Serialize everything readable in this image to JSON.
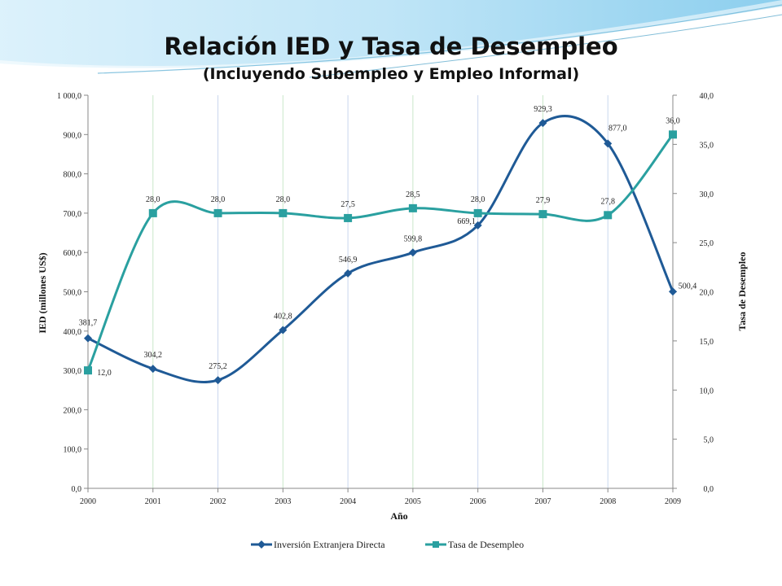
{
  "title": "Relación IED y Tasa de Desempleo",
  "subtitle": "(Incluyendo Subempleo y Empleo Informal)",
  "chart_data": {
    "type": "line",
    "categories": [
      "2000",
      "2001",
      "2002",
      "2003",
      "2004",
      "2005",
      "2006",
      "2007",
      "2008",
      "2009"
    ],
    "xlabel": "Año",
    "ylabel": "IED (millones US$)",
    "y2label": "Tasa de Desempleo",
    "ylim": [
      0,
      1000
    ],
    "y2lim": [
      0,
      40
    ],
    "yticks": [
      "0,0",
      "100,0",
      "200,0",
      "300,0",
      "400,0",
      "500,0",
      "600,0",
      "700,0",
      "800,0",
      "900,0",
      "1 000,0"
    ],
    "y2ticks": [
      "0,0",
      "5,0",
      "10,0",
      "15,0",
      "20,0",
      "25,0",
      "30,0",
      "35,0",
      "40,0"
    ],
    "grid": "vertical",
    "legend": "bottom",
    "series": [
      {
        "name": "Inversión Extranjera Directa",
        "axis": "left",
        "color": "#1f5a96",
        "marker": "diamond",
        "values": [
          381.7,
          304.2,
          275.2,
          402.8,
          546.9,
          599.8,
          669.1,
          929.3,
          877.0,
          500.4
        ],
        "labels": [
          "381,7",
          "304,2",
          "275,2",
          "402,8",
          "546,9",
          "599,8",
          "669,1",
          "929,3",
          "877,0",
          "500,4"
        ]
      },
      {
        "name": "Tasa de Desempleo",
        "axis": "right",
        "color": "#2aa0a0",
        "marker": "square",
        "values": [
          12.0,
          28.0,
          28.0,
          28.0,
          27.5,
          28.5,
          28.0,
          27.9,
          27.8,
          36.0
        ],
        "labels": [
          "12,0",
          "28,0",
          "28,0",
          "28,0",
          "27,5",
          "28,5",
          "28,0",
          "27,9",
          "27,8",
          "36,0"
        ]
      }
    ]
  }
}
